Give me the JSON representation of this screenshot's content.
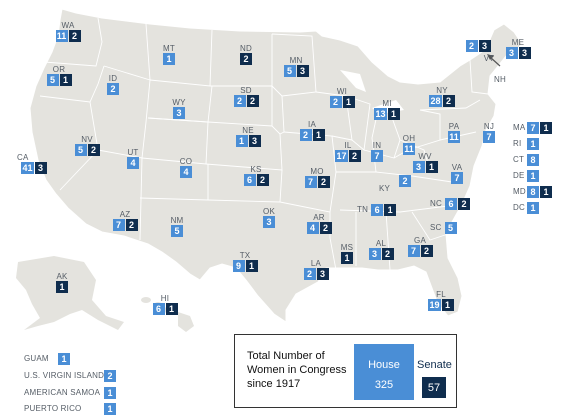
{
  "states": [
    {
      "abbr": "WA",
      "house": "11",
      "senate": "2"
    },
    {
      "abbr": "OR",
      "house": "5",
      "senate": "1"
    },
    {
      "abbr": "ID",
      "house": "2",
      "senate": ""
    },
    {
      "abbr": "MT",
      "house": "1",
      "senate": ""
    },
    {
      "abbr": "WY",
      "house": "3",
      "senate": ""
    },
    {
      "abbr": "ND",
      "house": "",
      "senate": "2"
    },
    {
      "abbr": "SD",
      "house": "2",
      "senate": "2"
    },
    {
      "abbr": "MN",
      "house": "5",
      "senate": "3"
    },
    {
      "abbr": "WI",
      "house": "2",
      "senate": "1"
    },
    {
      "abbr": "MI",
      "house": "13",
      "senate": "1"
    },
    {
      "abbr": "NY",
      "house": "28",
      "senate": "2"
    },
    {
      "abbr": "VT",
      "house": "2",
      "senate": "3"
    },
    {
      "abbr": "ME",
      "house": "3",
      "senate": "3"
    },
    {
      "abbr": "NV",
      "house": "5",
      "senate": "2"
    },
    {
      "abbr": "CA",
      "house": "41",
      "senate": "3"
    },
    {
      "abbr": "UT",
      "house": "4",
      "senate": ""
    },
    {
      "abbr": "CO",
      "house": "4",
      "senate": ""
    },
    {
      "abbr": "NE",
      "house": "1",
      "senate": "3"
    },
    {
      "abbr": "IA",
      "house": "2",
      "senate": "1"
    },
    {
      "abbr": "IL",
      "house": "17",
      "senate": "2"
    },
    {
      "abbr": "IN",
      "house": "7",
      "senate": ""
    },
    {
      "abbr": "OH",
      "house": "11",
      "senate": ""
    },
    {
      "abbr": "PA",
      "house": "11",
      "senate": ""
    },
    {
      "abbr": "NJ",
      "house": "7",
      "senate": ""
    },
    {
      "abbr": "KS",
      "house": "6",
      "senate": "2"
    },
    {
      "abbr": "MO",
      "house": "7",
      "senate": "2"
    },
    {
      "abbr": "KY",
      "house": "2",
      "senate": ""
    },
    {
      "abbr": "WV",
      "house": "3",
      "senate": "1"
    },
    {
      "abbr": "VA",
      "house": "7",
      "senate": ""
    },
    {
      "abbr": "AZ",
      "house": "7",
      "senate": "2"
    },
    {
      "abbr": "NM",
      "house": "5",
      "senate": ""
    },
    {
      "abbr": "OK",
      "house": "3",
      "senate": ""
    },
    {
      "abbr": "AR",
      "house": "4",
      "senate": "2"
    },
    {
      "abbr": "TN",
      "house": "6",
      "senate": "1"
    },
    {
      "abbr": "NC",
      "house": "6",
      "senate": "2"
    },
    {
      "abbr": "SC",
      "house": "5",
      "senate": ""
    },
    {
      "abbr": "TX",
      "house": "9",
      "senate": "1"
    },
    {
      "abbr": "LA",
      "house": "2",
      "senate": "3"
    },
    {
      "abbr": "MS",
      "house": "",
      "senate": "1"
    },
    {
      "abbr": "AL",
      "house": "3",
      "senate": "2"
    },
    {
      "abbr": "GA",
      "house": "7",
      "senate": "2"
    },
    {
      "abbr": "FL",
      "house": "19",
      "senate": "1"
    },
    {
      "abbr": "AK",
      "house": "",
      "senate": "1"
    },
    {
      "abbr": "HI",
      "house": "6",
      "senate": "1"
    }
  ],
  "labels": {
    "nh": "NH"
  },
  "northeast": [
    {
      "abbr": "MA",
      "house": "7",
      "senate": "1"
    },
    {
      "abbr": "RI",
      "house": "1",
      "senate": ""
    },
    {
      "abbr": "CT",
      "house": "8",
      "senate": ""
    },
    {
      "abbr": "DE",
      "house": "1",
      "senate": ""
    },
    {
      "abbr": "MD",
      "house": "8",
      "senate": "1"
    },
    {
      "abbr": "DC",
      "house": "1",
      "senate": ""
    }
  ],
  "territories": [
    {
      "name": "GUAM",
      "house": "1"
    },
    {
      "name": "U.S. VIRGIN ISLANDS",
      "house": "2"
    },
    {
      "name": "AMERICAN SAMOA",
      "house": "1"
    },
    {
      "name": "PUERTO RICO",
      "house": "1"
    }
  ],
  "legend": {
    "title": "Total Number of Women in Congress since 1917",
    "house_label": "House",
    "house_total": "325",
    "senate_label": "Senate",
    "senate_total": "57"
  },
  "colors": {
    "house": "#4a8ed6",
    "senate": "#0f2d4e",
    "land": "#e4e3de",
    "border": "#ffffff"
  }
}
